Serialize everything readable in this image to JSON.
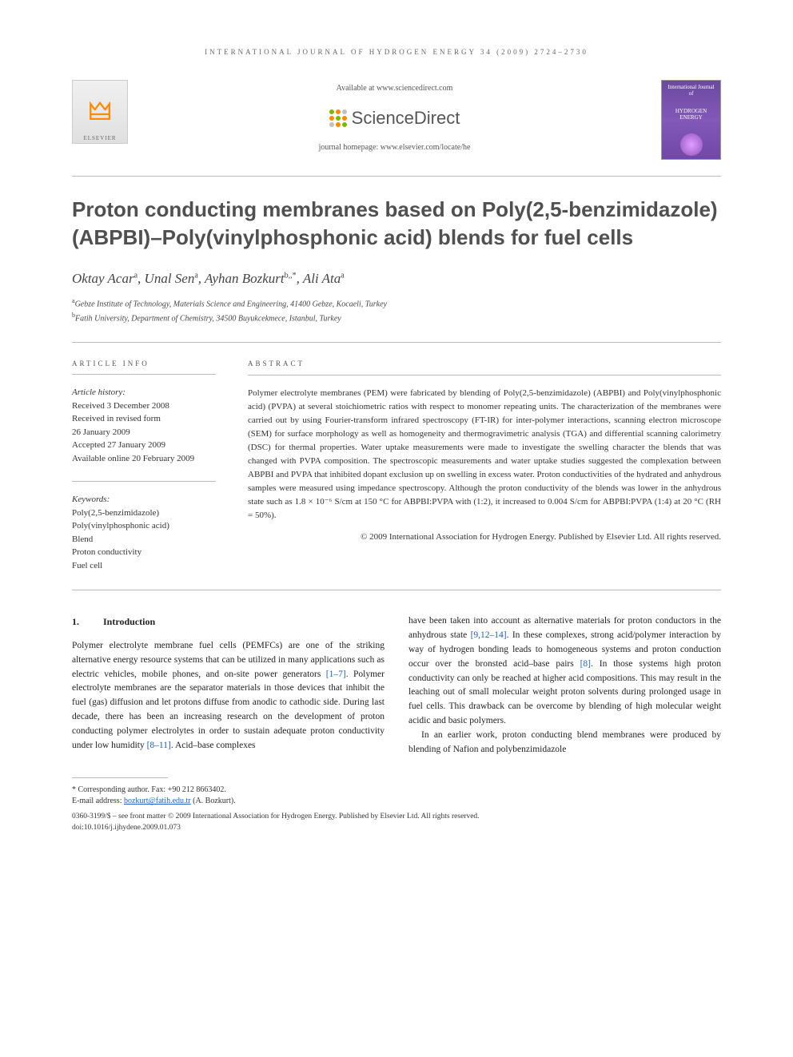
{
  "running_header": "INTERNATIONAL JOURNAL OF HYDROGEN ENERGY 34 (2009) 2724–2730",
  "header": {
    "available_at": "Available at www.sciencedirect.com",
    "sd_brand": "ScienceDirect",
    "journal_home": "journal homepage: www.elsevier.com/locate/he",
    "elsevier_label": "ELSEVIER",
    "cover_title": "HYDROGEN ENERGY",
    "cover_sub": "International Journal of"
  },
  "sd_dot_colors": [
    "#7ab800",
    "#ff8a00",
    "#c0c0c0",
    "#ff8a00",
    "#7ab800",
    "#ff8a00",
    "#c0c0c0",
    "#ff8a00",
    "#7ab800"
  ],
  "article": {
    "title": "Proton conducting membranes based on Poly(2,5-benzimidazole) (ABPBI)–Poly(vinylphosphonic acid) blends for fuel cells",
    "authors_html": "Oktay Acar",
    "authors": [
      {
        "name": "Oktay Acar",
        "sup": "a"
      },
      {
        "name": "Unal Sen",
        "sup": "a"
      },
      {
        "name": "Ayhan Bozkurt",
        "sup": "b,*"
      },
      {
        "name": "Ali Ata",
        "sup": "a"
      }
    ],
    "affiliations": [
      {
        "sup": "a",
        "text": "Gebze Institute of Technology, Materials Science and Engineering, 41400 Gebze, Kocaeli, Turkey"
      },
      {
        "sup": "b",
        "text": "Fatih University, Department of Chemistry, 34500 Buyukcekmece, Istanbul, Turkey"
      }
    ]
  },
  "info": {
    "section_label": "ARTICLE INFO",
    "history_label": "Article history:",
    "history": [
      "Received 3 December 2008",
      "Received in revised form",
      "26 January 2009",
      "Accepted 27 January 2009",
      "Available online 20 February 2009"
    ],
    "keywords_label": "Keywords:",
    "keywords": [
      "Poly(2,5-benzimidazole)",
      "Poly(vinylphosphonic acid)",
      "Blend",
      "Proton conductivity",
      "Fuel cell"
    ]
  },
  "abstract": {
    "section_label": "ABSTRACT",
    "text": "Polymer electrolyte membranes (PEM) were fabricated by blending of Poly(2,5-benzimidazole) (ABPBI) and Poly(vinylphosphonic acid) (PVPA) at several stoichiometric ratios with respect to monomer repeating units. The characterization of the membranes were carried out by using Fourier-transform infrared spectroscopy (FT-IR) for inter-polymer interactions, scanning electron microscope (SEM) for surface morphology as well as homogeneity and thermogravimetric analysis (TGA) and differential scanning calorimetry (DSC) for thermal properties. Water uptake measurements were made to investigate the swelling character the blends that was changed with PVPA composition. The spectroscopic measurements and water uptake studies suggested the complexation between ABPBI and PVPA that inhibited dopant exclusion up on swelling in excess water. Proton conductivities of the hydrated and anhydrous samples were measured using impedance spectroscopy. Although the proton conductivity of the blends was lower in the anhydrous state such as 1.8 × 10⁻⁶ S/cm at 150 °C for ABPBI:PVPA with (1:2), it increased to 0.004 S/cm for ABPBI:PVPA (1:4) at 20 °C (RH = 50%).",
    "copyright": "© 2009 International Association for Hydrogen Energy. Published by Elsevier Ltd. All rights reserved."
  },
  "body": {
    "section_number": "1.",
    "section_title": "Introduction",
    "col1": "Polymer electrolyte membrane fuel cells (PEMFCs) are one of the striking alternative energy resource systems that can be utilized in many applications such as electric vehicles, mobile phones, and on-site power generators [1–7]. Polymer electrolyte membranes are the separator materials in those devices that inhibit the fuel (gas) diffusion and let protons diffuse from anodic to cathodic side. During last decade, there has been an increasing research on the development of proton conducting polymer electrolytes in order to sustain adequate proton conductivity under low humidity [8–11]. Acid–base complexes",
    "col2a": "have been taken into account as alternative materials for proton conductors in the anhydrous state [9,12–14]. In these complexes, strong acid/polymer interaction by way of hydrogen bonding leads to homogeneous systems and proton conduction occur over the bronsted acid–base pairs [8]. In those systems high proton conductivity can only be reached at higher acid compositions. This may result in the leaching out of small molecular weight proton solvents during prolonged usage in fuel cells. This drawback can be overcome by blending of high molecular weight acidic and basic polymers.",
    "col2b": "In an earlier work, proton conducting blend membranes were produced by blending of Nafion and polybenzimidazole",
    "refs": {
      "r1": "[1–7]",
      "r2": "[8–11]",
      "r3": "[9,12–14]",
      "r4": "[8]"
    }
  },
  "footnotes": {
    "corr": "* Corresponding author. Fax: +90 212 8663402.",
    "email_label": "E-mail address: ",
    "email": "bozkurt@fatih.edu.tr",
    "email_tail": " (A. Bozkurt).",
    "rights": "0360-3199/$ – see front matter © 2009 International Association for Hydrogen Energy. Published by Elsevier Ltd. All rights reserved.",
    "doi": "doi:10.1016/j.ijhydene.2009.01.073"
  }
}
